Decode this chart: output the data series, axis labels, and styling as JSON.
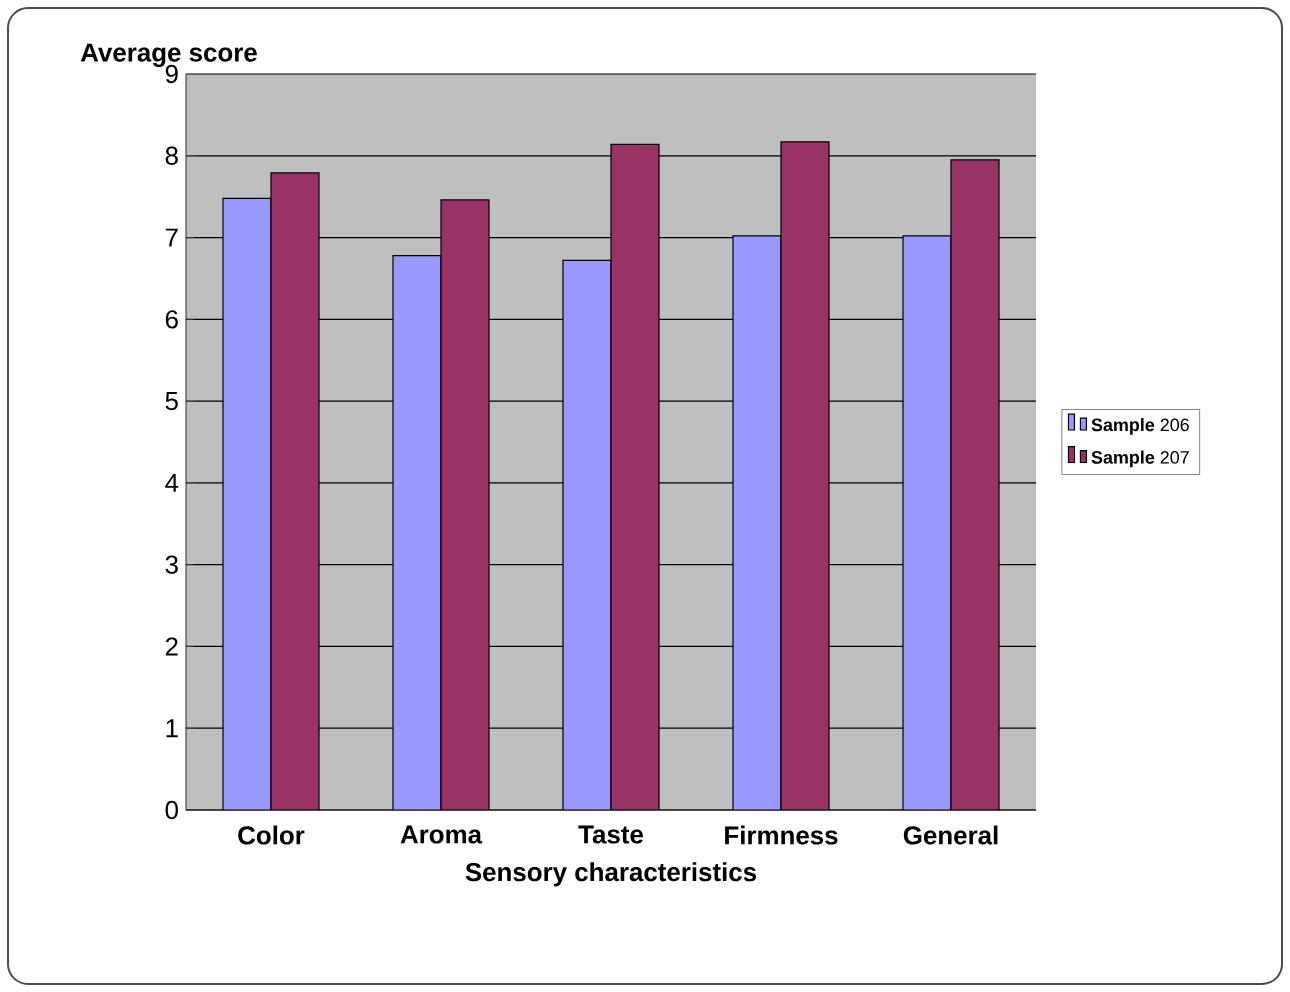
{
  "chart_data": {
    "type": "bar",
    "ylabel": "Average score",
    "xlabel": "Sensory characteristics",
    "categories": [
      "Color",
      "Aroma",
      "Taste",
      "Firmness",
      "General"
    ],
    "series": [
      {
        "name": "**Sample** 206",
        "color": "#9999ff",
        "values": [
          7.48,
          6.78,
          6.72,
          7.02,
          7.02
        ]
      },
      {
        "name": "**Sample** 207",
        "color": "#993366",
        "values": [
          7.79,
          7.46,
          8.14,
          8.17,
          7.95
        ]
      }
    ],
    "ylim": [
      0,
      9
    ],
    "yticks": [
      0,
      1,
      2,
      3,
      4,
      5,
      6,
      7,
      8,
      9
    ],
    "grid": "y",
    "legend": "right"
  }
}
